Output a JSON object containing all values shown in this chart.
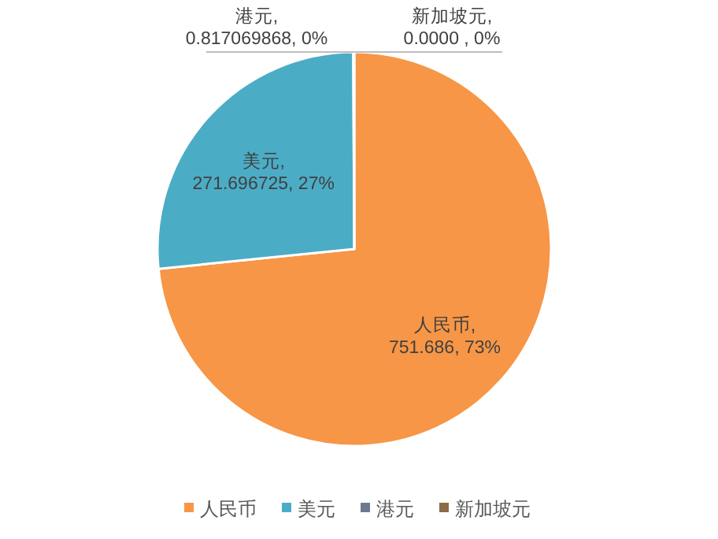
{
  "chart_data": {
    "type": "pie",
    "categories": [
      "人民币",
      "美元",
      "港元",
      "新加坡元"
    ],
    "values": [
      751.686,
      271.696725,
      0.817069868,
      0.0
    ],
    "colors": [
      "#f79646",
      "#4bacc6",
      "#6b7a8f",
      "#8b6b48"
    ],
    "value_labels": [
      "人民币, 751.686, 73%",
      "美元, 271.696725, 27%",
      "港元, 0.817069868, 0%",
      "新加坡元, 0.0000 , 0%"
    ],
    "legend": "bottom"
  }
}
